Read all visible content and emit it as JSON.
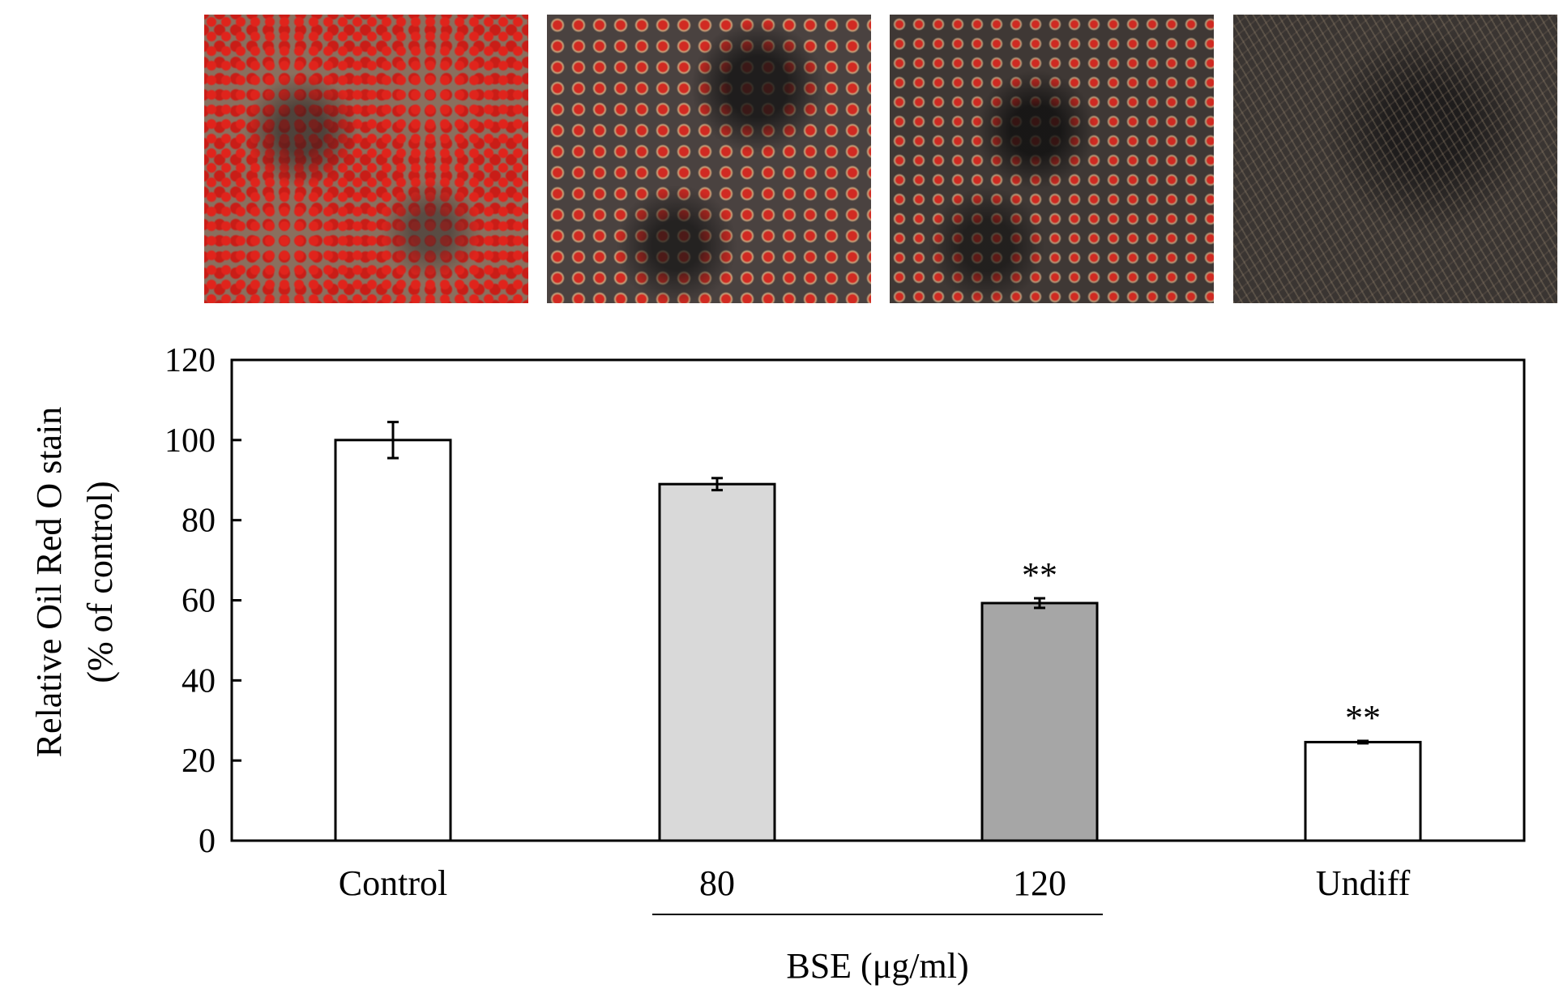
{
  "micrographs": [
    "Control",
    "80",
    "120",
    "Undiff"
  ],
  "chart_data": {
    "type": "bar",
    "categories": [
      "Control",
      "80",
      "120",
      "Undiff"
    ],
    "values": [
      100,
      89,
      59.3,
      24.6
    ],
    "errors": [
      4.5,
      1.5,
      1.2,
      0.3
    ],
    "significance": [
      "",
      "",
      "**",
      "**"
    ],
    "colors": [
      "#ffffff",
      "#d9d9d9",
      "#a6a6a6",
      "#ffffff"
    ],
    "ylabel_line1": "Relative Oil Red O stain",
    "ylabel_line2": "(% of control)",
    "xgroup_label": "BSE (μg/ml)",
    "ylim": [
      0,
      120
    ],
    "yticks": [
      0,
      20,
      40,
      60,
      80,
      100,
      120
    ],
    "grid": false
  }
}
